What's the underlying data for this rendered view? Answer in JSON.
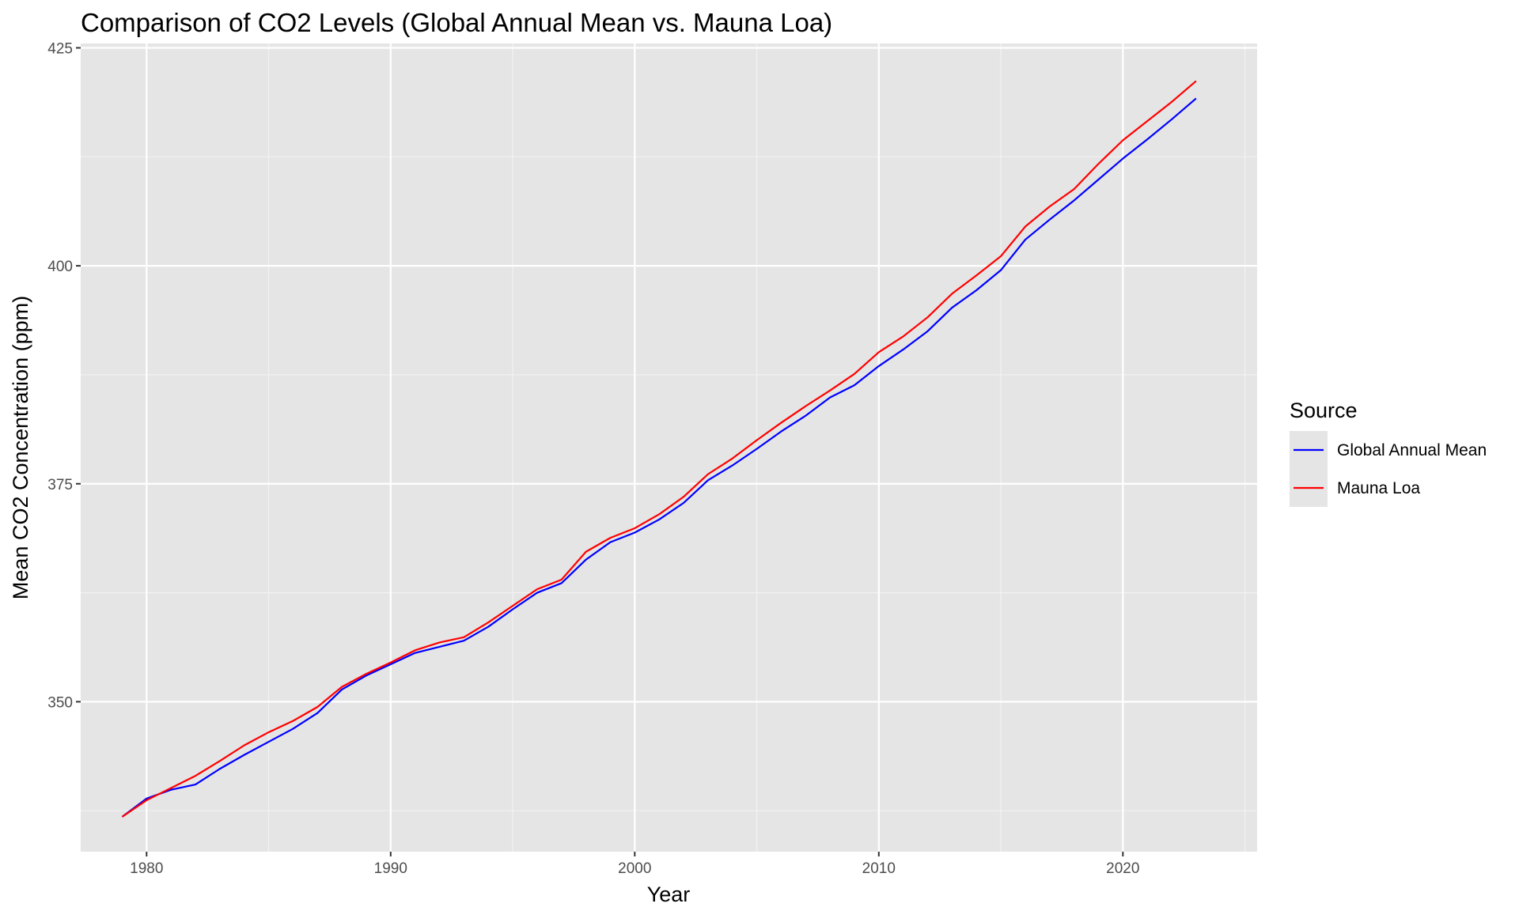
{
  "chart_data": {
    "type": "line",
    "title": "Comparison of CO2 Levels (Global Annual Mean vs. Mauna Loa)",
    "xlabel": "Year",
    "ylabel": "Mean CO2 Concentration (ppm)",
    "xlim": [
      1977.3,
      2025.5
    ],
    "ylim": [
      332.8,
      425.5
    ],
    "x_ticks": [
      1980,
      1990,
      2000,
      2010,
      2020
    ],
    "y_ticks": [
      350,
      375,
      400,
      425
    ],
    "grid": true,
    "background": "#e5e5e5",
    "legend": {
      "title": "Source",
      "position": "right"
    },
    "x": [
      1979,
      1980,
      1981,
      1982,
      1983,
      1984,
      1985,
      1986,
      1987,
      1988,
      1989,
      1990,
      1991,
      1992,
      1993,
      1994,
      1995,
      1996,
      1997,
      1998,
      1999,
      2000,
      2001,
      2002,
      2003,
      2004,
      2005,
      2006,
      2007,
      2008,
      2009,
      2010,
      2011,
      2012,
      2013,
      2014,
      2015,
      2016,
      2017,
      2018,
      2019,
      2020,
      2021,
      2022,
      2023
    ],
    "series": [
      {
        "name": "Global Annual Mean",
        "color": "#0000ff",
        "values": [
          336.8,
          338.9,
          339.9,
          340.5,
          342.3,
          343.9,
          345.4,
          346.9,
          348.7,
          351.4,
          353.0,
          354.3,
          355.6,
          356.3,
          357.0,
          358.6,
          360.6,
          362.5,
          363.6,
          366.3,
          368.3,
          369.4,
          370.9,
          372.8,
          375.4,
          377.1,
          379.0,
          381.0,
          382.8,
          384.9,
          386.3,
          388.5,
          390.4,
          392.5,
          395.2,
          397.2,
          399.5,
          403.0,
          405.3,
          407.5,
          409.9,
          412.3,
          414.5,
          416.8,
          419.2
        ]
      },
      {
        "name": "Mauna Loa",
        "color": "#ff0000",
        "values": [
          336.8,
          338.7,
          340.1,
          341.5,
          343.2,
          345.0,
          346.5,
          347.8,
          349.4,
          351.7,
          353.2,
          354.5,
          355.9,
          356.8,
          357.4,
          359.1,
          361.0,
          362.9,
          364.0,
          367.2,
          368.8,
          369.9,
          371.5,
          373.5,
          376.1,
          377.9,
          380.0,
          382.0,
          383.9,
          385.7,
          387.6,
          390.1,
          391.9,
          394.1,
          396.8,
          398.9,
          401.1,
          404.5,
          406.8,
          408.8,
          411.7,
          414.4,
          416.6,
          418.8,
          421.2
        ]
      }
    ]
  }
}
